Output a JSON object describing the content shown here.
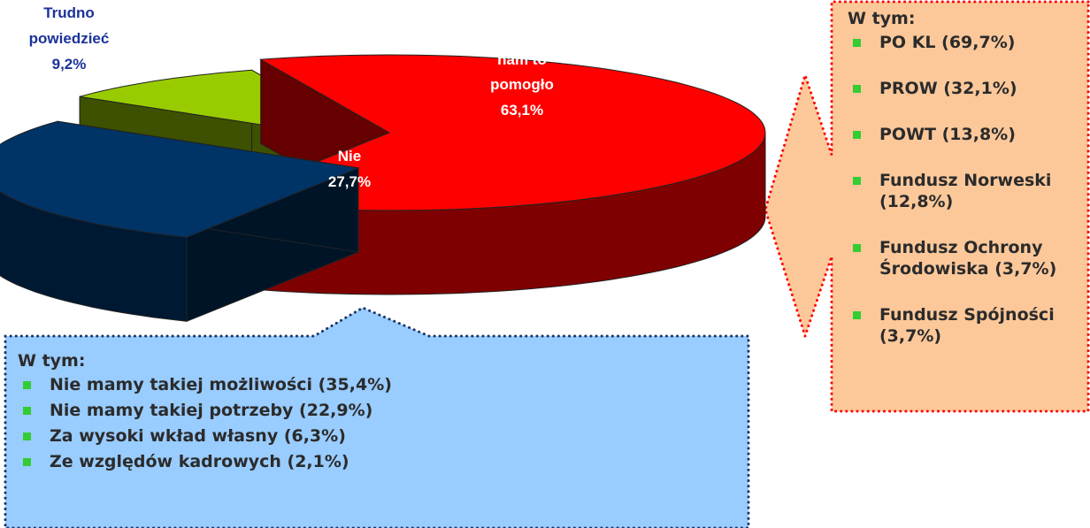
{
  "chart_data": {
    "type": "pie",
    "categories": [
      "Tak, bardzo nam to pomogło",
      "Nie",
      "Trudno powiedzieć"
    ],
    "values": [
      63.1,
      27.7,
      9.2
    ],
    "value_labels": [
      "63,1%",
      "27,7%",
      "9,2%"
    ],
    "colors": [
      "#ff0000",
      "#003366",
      "#99cc00"
    ],
    "callouts": [
      {
        "title": "W tym:",
        "items": [
          "Nie mamy takiej możliwości (35,4%)",
          "Nie mamy takiej potrzeby (22,9%)",
          "Za wysoki wkład własny (6,3%)",
          "Ze względów kadrowych (2,1%)"
        ]
      },
      {
        "title": "W tym:",
        "items": [
          "PO KL (69,7%)",
          "PROW (32,1%)",
          "POWT (13,8%)",
          "Fundusz Norweski (12,8%)",
          "Fundusz Ochrony Środowiska (3,7%)",
          "Fundusz Spójności (3,7%)"
        ]
      }
    ]
  }
}
